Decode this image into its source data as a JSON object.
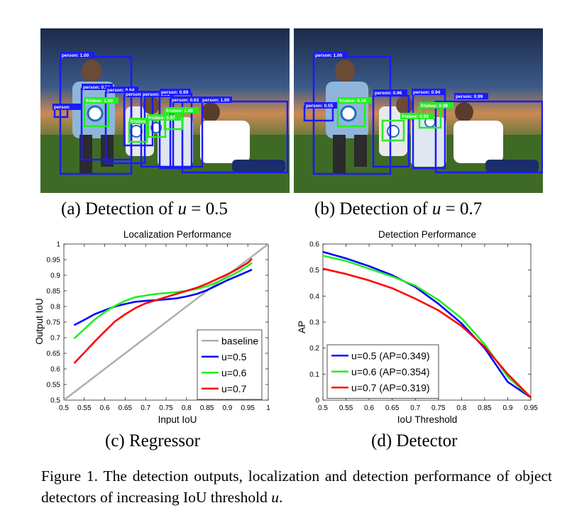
{
  "panels": [
    {
      "sublabel_prefix": "(a) Detection of",
      "sublabel_var": "u",
      "sublabel_suffix": " = 0.5",
      "detections": [
        {
          "label": "person: 1.00",
          "cls": "person"
        },
        {
          "label": "person: 0.56",
          "cls": "person"
        },
        {
          "label": "person: 0.64",
          "cls": "person"
        },
        {
          "label": "person: 0.7",
          "cls": "person"
        },
        {
          "label": "person: 0.92",
          "cls": "person"
        },
        {
          "label": "person: 0.99",
          "cls": "person"
        },
        {
          "label": "person: 0.63",
          "cls": "person"
        },
        {
          "label": "person: 1.00",
          "cls": "person"
        },
        {
          "label": "person",
          "cls": "person"
        },
        {
          "label": "frisbee: 1.00",
          "cls": "frisbee"
        },
        {
          "label": "frisbee: 0.97",
          "cls": "frisbee"
        },
        {
          "label": "frisbee: 1.00",
          "cls": "frisbee"
        },
        {
          "label": "frisbee",
          "cls": "frisbee"
        }
      ]
    },
    {
      "sublabel_prefix": "(b) Detection of",
      "sublabel_var": "u",
      "sublabel_suffix": " = 0.7",
      "detections": [
        {
          "label": "person: 1.00",
          "cls": "person"
        },
        {
          "label": "person: 0.55",
          "cls": "person"
        },
        {
          "label": "person: 0.96",
          "cls": "person"
        },
        {
          "label": "person: 0.94",
          "cls": "person"
        },
        {
          "label": "person: 0.99",
          "cls": "person"
        },
        {
          "label": "frisbee: 0.98",
          "cls": "frisbee"
        },
        {
          "label": "frisbee: 0.93",
          "cls": "frisbee"
        },
        {
          "label": "frisbee: 0.99",
          "cls": "frisbee"
        }
      ]
    }
  ],
  "colors": {
    "person_box": "#1a1aff",
    "frisbee_box": "#22ee22",
    "baseline": "#b0b0b0",
    "u05": "#0000ff",
    "u06": "#22ee22",
    "u07": "#ff0000"
  },
  "chart_data": [
    {
      "type": "line",
      "sublabel": "(c) Regressor",
      "title": "Localization Performance",
      "xlabel": "Input IoU",
      "ylabel": "Output IoU",
      "xlim": [
        0.5,
        1
      ],
      "ylim": [
        0.5,
        1
      ],
      "xticks": [
        "0.5",
        "0.55",
        "0.6",
        "0.65",
        "0.7",
        "0.75",
        "0.8",
        "0.85",
        "0.9",
        "0.95",
        "1"
      ],
      "yticks": [
        "0.5",
        "0.55",
        "0.6",
        "0.65",
        "0.7",
        "0.75",
        "0.8",
        "0.85",
        "0.9",
        "0.95",
        "1"
      ],
      "legend_position": "bottom-right",
      "series": [
        {
          "name": "baseline",
          "color": "#b0b0b0",
          "x": [
            0.5,
            1.0
          ],
          "y": [
            0.5,
            1.0
          ]
        },
        {
          "name": "u=0.5",
          "color": "#0000ff",
          "x": [
            0.525,
            0.55,
            0.575,
            0.6,
            0.625,
            0.65,
            0.675,
            0.7,
            0.725,
            0.75,
            0.775,
            0.8,
            0.825,
            0.85,
            0.875,
            0.9,
            0.925,
            0.95,
            0.96
          ],
          "y": [
            0.74,
            0.757,
            0.775,
            0.788,
            0.8,
            0.808,
            0.815,
            0.818,
            0.82,
            0.823,
            0.826,
            0.832,
            0.84,
            0.852,
            0.868,
            0.884,
            0.898,
            0.912,
            0.918
          ]
        },
        {
          "name": "u=0.6",
          "color": "#22ee22",
          "x": [
            0.525,
            0.55,
            0.575,
            0.6,
            0.625,
            0.65,
            0.675,
            0.7,
            0.725,
            0.75,
            0.775,
            0.8,
            0.825,
            0.85,
            0.875,
            0.9,
            0.925,
            0.95,
            0.96
          ],
          "y": [
            0.697,
            0.727,
            0.758,
            0.782,
            0.802,
            0.818,
            0.83,
            0.835,
            0.84,
            0.843,
            0.846,
            0.85,
            0.856,
            0.865,
            0.878,
            0.893,
            0.91,
            0.93,
            0.94
          ]
        },
        {
          "name": "u=0.7",
          "color": "#ff0000",
          "x": [
            0.525,
            0.55,
            0.575,
            0.6,
            0.625,
            0.65,
            0.675,
            0.7,
            0.725,
            0.75,
            0.775,
            0.8,
            0.825,
            0.85,
            0.875,
            0.9,
            0.925,
            0.95,
            0.96
          ],
          "y": [
            0.618,
            0.652,
            0.687,
            0.72,
            0.752,
            0.775,
            0.795,
            0.81,
            0.82,
            0.83,
            0.84,
            0.85,
            0.86,
            0.873,
            0.888,
            0.903,
            0.92,
            0.94,
            0.953
          ]
        }
      ]
    },
    {
      "type": "line",
      "sublabel": "(d) Detector",
      "title": "Detection Performance",
      "xlabel": "IoU Threshold",
      "ylabel": "AP",
      "xlim": [
        0.5,
        0.95
      ],
      "ylim": [
        0,
        0.6
      ],
      "xticks": [
        "0.5",
        "0.55",
        "0.6",
        "0.65",
        "0.7",
        "0.75",
        "0.8",
        "0.85",
        "0.9",
        "0.95"
      ],
      "yticks": [
        "0",
        "0.1",
        "0.2",
        "0.3",
        "0.4",
        "0.5",
        "0.6"
      ],
      "legend_position": "bottom-left",
      "series": [
        {
          "name": "u=0.5 (AP=0.349)",
          "color": "#0000ff",
          "x": [
            0.5,
            0.55,
            0.6,
            0.65,
            0.7,
            0.75,
            0.8,
            0.85,
            0.9,
            0.95
          ],
          "y": [
            0.57,
            0.545,
            0.515,
            0.48,
            0.435,
            0.37,
            0.295,
            0.2,
            0.07,
            0.01
          ]
        },
        {
          "name": "u=0.6 (AP=0.354)",
          "color": "#22ee22",
          "x": [
            0.5,
            0.55,
            0.6,
            0.65,
            0.7,
            0.75,
            0.8,
            0.85,
            0.9,
            0.95
          ],
          "y": [
            0.555,
            0.535,
            0.505,
            0.475,
            0.44,
            0.385,
            0.315,
            0.215,
            0.09,
            0.01
          ]
        },
        {
          "name": "u=0.7 (AP=0.319)",
          "color": "#ff0000",
          "x": [
            0.5,
            0.55,
            0.6,
            0.65,
            0.7,
            0.75,
            0.8,
            0.85,
            0.9,
            0.95
          ],
          "y": [
            0.505,
            0.485,
            0.46,
            0.43,
            0.39,
            0.345,
            0.285,
            0.205,
            0.1,
            0.01
          ]
        }
      ]
    }
  ],
  "caption": {
    "text": "Figure 1. The detection outputs, localization and detection performance of object detectors of increasing IoU threshold ",
    "var": "u",
    "end": "."
  }
}
